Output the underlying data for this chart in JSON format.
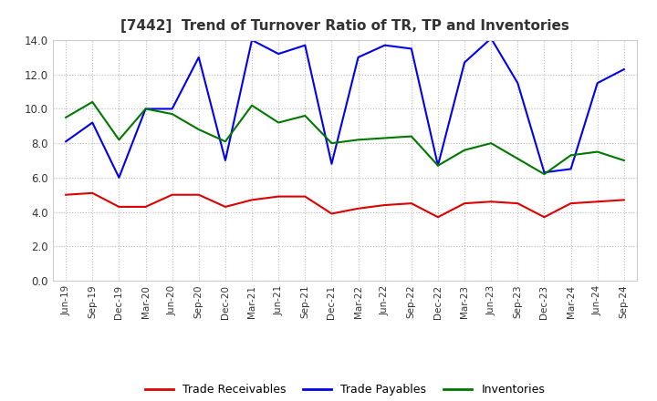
{
  "title": "[7442]  Trend of Turnover Ratio of TR, TP and Inventories",
  "x_labels": [
    "Jun-19",
    "Sep-19",
    "Dec-19",
    "Mar-20",
    "Jun-20",
    "Sep-20",
    "Dec-20",
    "Mar-21",
    "Jun-21",
    "Sep-21",
    "Dec-21",
    "Mar-22",
    "Jun-22",
    "Sep-22",
    "Dec-22",
    "Mar-23",
    "Jun-23",
    "Sep-23",
    "Dec-23",
    "Mar-24",
    "Jun-24",
    "Sep-24"
  ],
  "trade_receivables": [
    5.0,
    5.1,
    4.3,
    4.3,
    5.0,
    5.0,
    4.3,
    4.7,
    4.9,
    4.9,
    3.9,
    4.2,
    4.4,
    4.5,
    3.7,
    4.5,
    4.6,
    4.5,
    3.7,
    4.5,
    4.6,
    4.7
  ],
  "trade_payables": [
    8.1,
    9.2,
    6.0,
    10.0,
    10.0,
    13.0,
    7.0,
    14.0,
    13.2,
    13.7,
    6.8,
    13.0,
    13.7,
    13.5,
    6.7,
    12.7,
    14.1,
    11.5,
    6.3,
    6.5,
    11.5,
    12.3
  ],
  "inventories": [
    9.5,
    10.4,
    8.2,
    10.0,
    9.7,
    8.8,
    8.1,
    10.2,
    9.2,
    9.6,
    8.0,
    8.2,
    8.3,
    8.4,
    6.7,
    7.6,
    8.0,
    7.1,
    6.2,
    7.3,
    7.5,
    7.0
  ],
  "ylim": [
    0.0,
    14.0
  ],
  "yticks": [
    0.0,
    2.0,
    4.0,
    6.0,
    8.0,
    10.0,
    12.0,
    14.0
  ],
  "tr_color": "#dd0000",
  "tp_color": "#0000ee",
  "inv_color": "#007700",
  "background_color": "#ffffff",
  "grid_color": "#bbbbbb",
  "legend_labels": [
    "Trade Receivables",
    "Trade Payables",
    "Inventories"
  ],
  "title_color": "#333333"
}
